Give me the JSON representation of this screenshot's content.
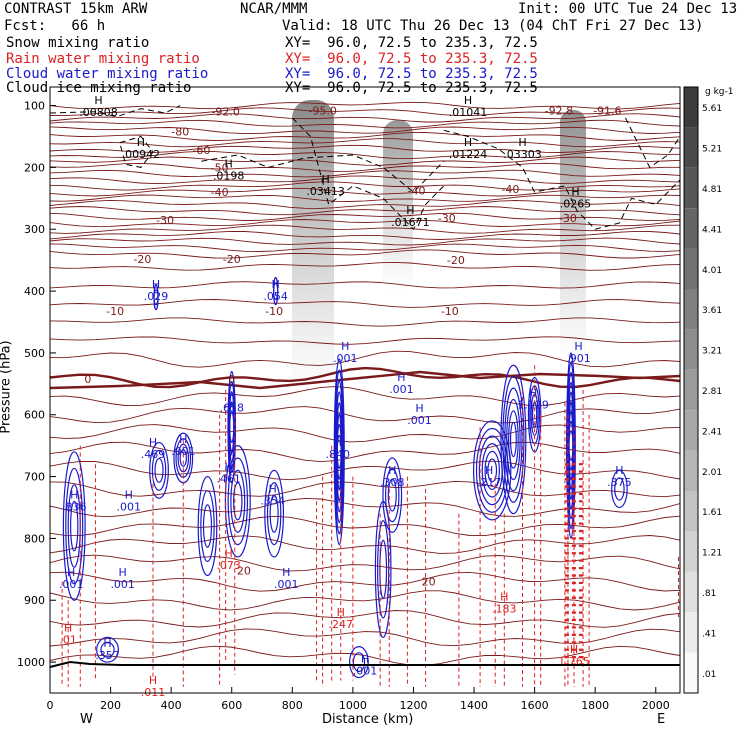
{
  "header": {
    "model": "CONTRAST 15km ARW",
    "institution": "NCAR/MMM",
    "init": "Init: 00 UTC Tue 24 Dec 13",
    "fcst": "Fcst:   66 h",
    "valid": "Valid: 18 UTC Thu 26 Dec 13 (04 ChT Fri 27 Dec 13)"
  },
  "colors": {
    "snow": "#000000",
    "rain": "#dd2222",
    "cloud_water": "#1a1acc",
    "cloud_ice": "#000000",
    "temperature": "#7a1a1a"
  },
  "fields": [
    {
      "name": "Snow mixing ratio",
      "xy": "XY=  96.0, 72.5 to 235.3, 72.5",
      "color": "#000000"
    },
    {
      "name": "Rain water mixing ratio",
      "xy": "XY=  96.0, 72.5 to 235.3, 72.5",
      "color": "#dd2222"
    },
    {
      "name": "Cloud water mixing ratio",
      "xy": "XY=  96.0, 72.5 to 235.3, 72.5",
      "color": "#1a1acc"
    },
    {
      "name": "Cloud ice mixing ratio",
      "xy": "XY=  96.0, 72.5 to 235.3, 72.5",
      "color": "#000000"
    }
  ],
  "chart_data": {
    "type": "contour-cross-section",
    "xlabel": "Distance (km)",
    "ylabel": "Pressure (hPa)",
    "xlim": [
      0,
      2080
    ],
    "ylim": [
      1050,
      70
    ],
    "x_ticks": [
      "0",
      "200",
      "400",
      "600",
      "800",
      "1000",
      "1200",
      "1400",
      "1600",
      "1800",
      "2000"
    ],
    "x_tick_values": [
      0,
      200,
      400,
      600,
      800,
      1000,
      1200,
      1400,
      1600,
      1800,
      2000
    ],
    "y_ticks": [
      "100",
      "200",
      "300",
      "400",
      "500",
      "600",
      "700",
      "800",
      "900",
      "1000"
    ],
    "y_tick_values": [
      100,
      200,
      300,
      400,
      500,
      600,
      700,
      800,
      900,
      1000
    ],
    "x_end_labels": {
      "west": "W",
      "east": "E"
    },
    "colorbar": {
      "unit": "g kg-1",
      "labels": [
        "5.61",
        "5.21",
        "4.81",
        "4.41",
        "4.01",
        "3.61",
        "3.21",
        "2.81",
        "2.41",
        "2.01",
        "1.61",
        "1.21",
        ".81",
        ".41",
        ".01"
      ],
      "values": [
        5.61,
        5.21,
        4.81,
        4.41,
        4.01,
        3.61,
        3.21,
        2.81,
        2.41,
        2.01,
        1.61,
        1.21,
        0.81,
        0.41,
        0.01
      ]
    },
    "isotherms": [
      {
        "label": "-92.0",
        "x": 580,
        "p": 110
      },
      {
        "label": "-95.0",
        "x": 900,
        "p": 108
      },
      {
        "label": "-92.8",
        "x": 1680,
        "p": 108
      },
      {
        "label": "-91.6",
        "x": 1840,
        "p": 108
      },
      {
        "label": "-80",
        "x": 430,
        "p": 142
      },
      {
        "label": "-60",
        "x": 500,
        "p": 172
      },
      {
        "label": "-50",
        "x": 560,
        "p": 200
      },
      {
        "label": "-40",
        "x": 560,
        "p": 240
      },
      {
        "label": "-40",
        "x": 1210,
        "p": 237
      },
      {
        "label": "-40",
        "x": 1520,
        "p": 235
      },
      {
        "label": "-30",
        "x": 380,
        "p": 285
      },
      {
        "label": "-30",
        "x": 1310,
        "p": 282
      },
      {
        "label": "-30",
        "x": 1710,
        "p": 282
      },
      {
        "label": "-20",
        "x": 305,
        "p": 348
      },
      {
        "label": "-20",
        "x": 600,
        "p": 348
      },
      {
        "label": "-20",
        "x": 1340,
        "p": 350
      },
      {
        "label": "-10",
        "x": 215,
        "p": 432
      },
      {
        "label": "-10",
        "x": 740,
        "p": 432
      },
      {
        "label": "-10",
        "x": 1320,
        "p": 432
      },
      {
        "label": "0",
        "x": 125,
        "p": 542
      },
      {
        "label": "0",
        "x": 600,
        "p": 542
      },
      {
        "label": "20",
        "x": 640,
        "p": 852
      },
      {
        "label": "20",
        "x": 1250,
        "p": 870
      }
    ],
    "cloud_water_maxima": [
      {
        "label": ".029",
        "x": 350,
        "p": 410
      },
      {
        "label": ".054",
        "x": 745,
        "p": 410
      },
      {
        "label": ".658",
        "x": 600,
        "p": 590
      },
      {
        "label": ".840",
        "x": 950,
        "p": 665
      },
      {
        "label": ".001",
        "x": 975,
        "p": 510
      },
      {
        "label": ".001",
        "x": 1160,
        "p": 560
      },
      {
        "label": ".001",
        "x": 1220,
        "p": 610
      },
      {
        "label": "1.129",
        "x": 1595,
        "p": 585
      },
      {
        "label": ".901",
        "x": 1745,
        "p": 510
      },
      {
        "label": ".469",
        "x": 340,
        "p": 665
      },
      {
        "label": ".001",
        "x": 440,
        "p": 660
      },
      {
        "label": ".461",
        "x": 590,
        "p": 705
      },
      {
        "label": ".354",
        "x": 735,
        "p": 740
      },
      {
        "label": ".308",
        "x": 1130,
        "p": 710
      },
      {
        "label": ".217",
        "x": 1450,
        "p": 710
      },
      {
        "label": ".375",
        "x": 1880,
        "p": 710
      },
      {
        "label": ".836",
        "x": 80,
        "p": 750
      },
      {
        "label": ".001",
        "x": 260,
        "p": 750
      },
      {
        "label": ".001",
        "x": 240,
        "p": 875
      },
      {
        "label": ".001",
        "x": 70,
        "p": 875
      },
      {
        "label": ".001",
        "x": 780,
        "p": 875
      },
      {
        "label": ".357",
        "x": 190,
        "p": 990
      },
      {
        "label": ".001",
        "x": 1040,
        "p": 1015
      }
    ],
    "rain_water_maxima": [
      {
        "label": ".073",
        "x": 590,
        "p": 845
      },
      {
        "label": ".247",
        "x": 960,
        "p": 940
      },
      {
        "label": ".01",
        "x": 60,
        "p": 965
      },
      {
        "label": ".011",
        "x": 340,
        "p": 1050
      },
      {
        "label": "1.765",
        "x": 1730,
        "p": 1000
      },
      {
        "label": ".183",
        "x": 1500,
        "p": 915
      }
    ],
    "ice_maxima": [
      {
        "label": ".00808",
        "x": 160,
        "p": 112
      },
      {
        "label": ".00942",
        "x": 300,
        "p": 180
      },
      {
        "label": ".0198",
        "x": 590,
        "p": 215
      },
      {
        "label": ".03413",
        "x": 910,
        "p": 240
      },
      {
        "label": ".01671",
        "x": 1190,
        "p": 290
      },
      {
        "label": ".01224",
        "x": 1380,
        "p": 180
      },
      {
        "label": ".03303",
        "x": 1560,
        "p": 180
      },
      {
        "label": ".01041",
        "x": 1380,
        "p": 112
      },
      {
        "label": ".0265",
        "x": 1735,
        "p": 260
      }
    ]
  }
}
